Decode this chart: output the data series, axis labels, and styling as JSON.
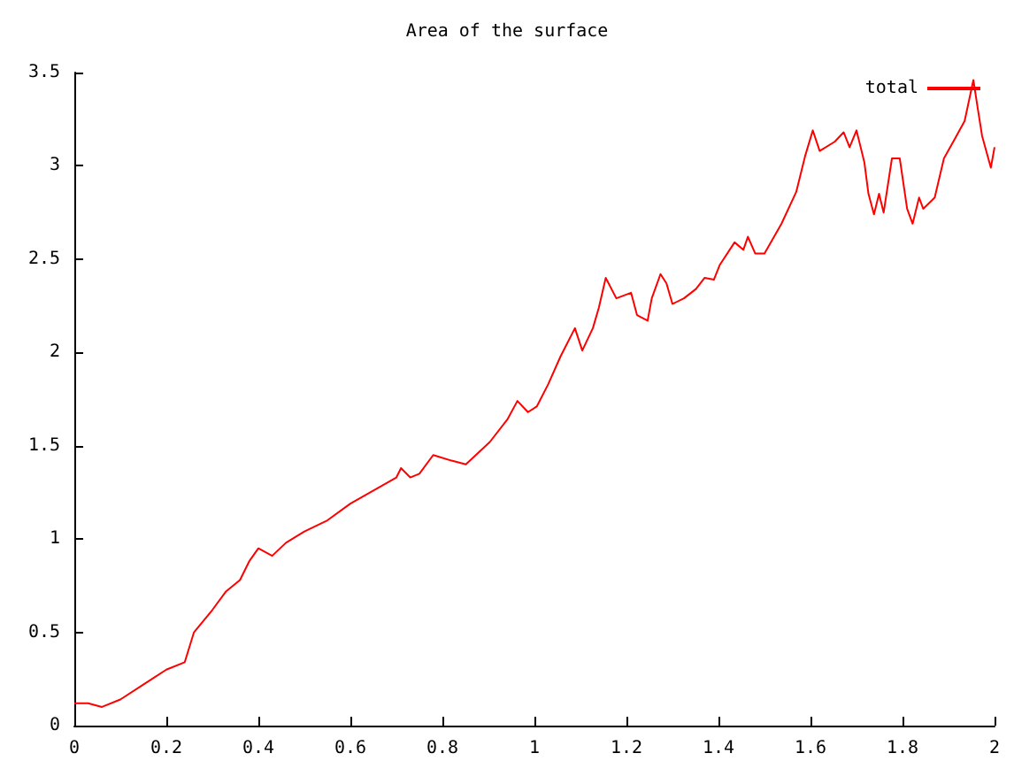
{
  "chart_data": {
    "type": "line",
    "title": "Area of the surface",
    "series": [
      {
        "name": "total",
        "color": "#ff0000",
        "x": [
          0,
          0.03,
          0.06,
          0.1,
          0.15,
          0.2,
          0.24,
          0.26,
          0.3,
          0.33,
          0.36,
          0.38,
          0.4,
          0.43,
          0.46,
          0.5,
          0.55,
          0.6,
          0.65,
          0.7,
          0.71,
          0.73,
          0.75,
          0.78,
          0.82,
          0.851,
          0.903,
          0.941,
          0.963,
          0.986,
          1.005,
          1.03,
          1.057,
          1.088,
          1.104,
          1.127,
          1.14,
          1.155,
          1.178,
          1.21,
          1.223,
          1.246,
          1.255,
          1.274,
          1.287,
          1.3,
          1.325,
          1.351,
          1.37,
          1.39,
          1.403,
          1.435,
          1.454,
          1.464,
          1.48,
          1.5,
          1.537,
          1.569,
          1.588,
          1.605,
          1.62,
          1.653,
          1.672,
          1.685,
          1.7,
          1.717,
          1.726,
          1.738,
          1.749,
          1.759,
          1.777,
          1.794,
          1.81,
          1.822,
          1.836,
          1.845,
          1.87,
          1.89,
          1.915,
          1.935,
          1.954,
          1.964,
          1.973,
          1.992,
          2.0
        ],
        "values": [
          0.12,
          0.12,
          0.1,
          0.14,
          0.22,
          0.3,
          0.34,
          0.5,
          0.62,
          0.72,
          0.78,
          0.88,
          0.95,
          0.91,
          0.98,
          1.04,
          1.1,
          1.19,
          1.26,
          1.33,
          1.38,
          1.33,
          1.35,
          1.45,
          1.42,
          1.4,
          1.52,
          1.64,
          1.74,
          1.68,
          1.71,
          1.83,
          1.98,
          2.13,
          2.01,
          2.13,
          2.24,
          2.4,
          2.29,
          2.32,
          2.2,
          2.17,
          2.29,
          2.42,
          2.37,
          2.26,
          2.29,
          2.34,
          2.4,
          2.39,
          2.47,
          2.59,
          2.55,
          2.62,
          2.53,
          2.53,
          2.69,
          2.86,
          3.05,
          3.19,
          3.08,
          3.13,
          3.18,
          3.1,
          3.19,
          3.02,
          2.85,
          2.74,
          2.85,
          2.75,
          3.04,
          3.04,
          2.77,
          2.69,
          2.83,
          2.77,
          2.83,
          3.04,
          3.15,
          3.24,
          3.46,
          3.3,
          3.16,
          2.99,
          3.1
        ]
      }
    ],
    "xlim": [
      0,
      2
    ],
    "xticks": [
      0,
      0.2,
      0.4,
      0.6,
      0.8,
      1,
      1.2,
      1.4,
      1.6,
      1.8,
      2
    ],
    "ylim": [
      0,
      3.5
    ],
    "yticks": [
      0,
      0.5,
      1,
      1.5,
      2,
      2.5,
      3,
      3.5
    ],
    "grid": false,
    "legend": "top right",
    "marker": "none",
    "line_style": "solid"
  }
}
